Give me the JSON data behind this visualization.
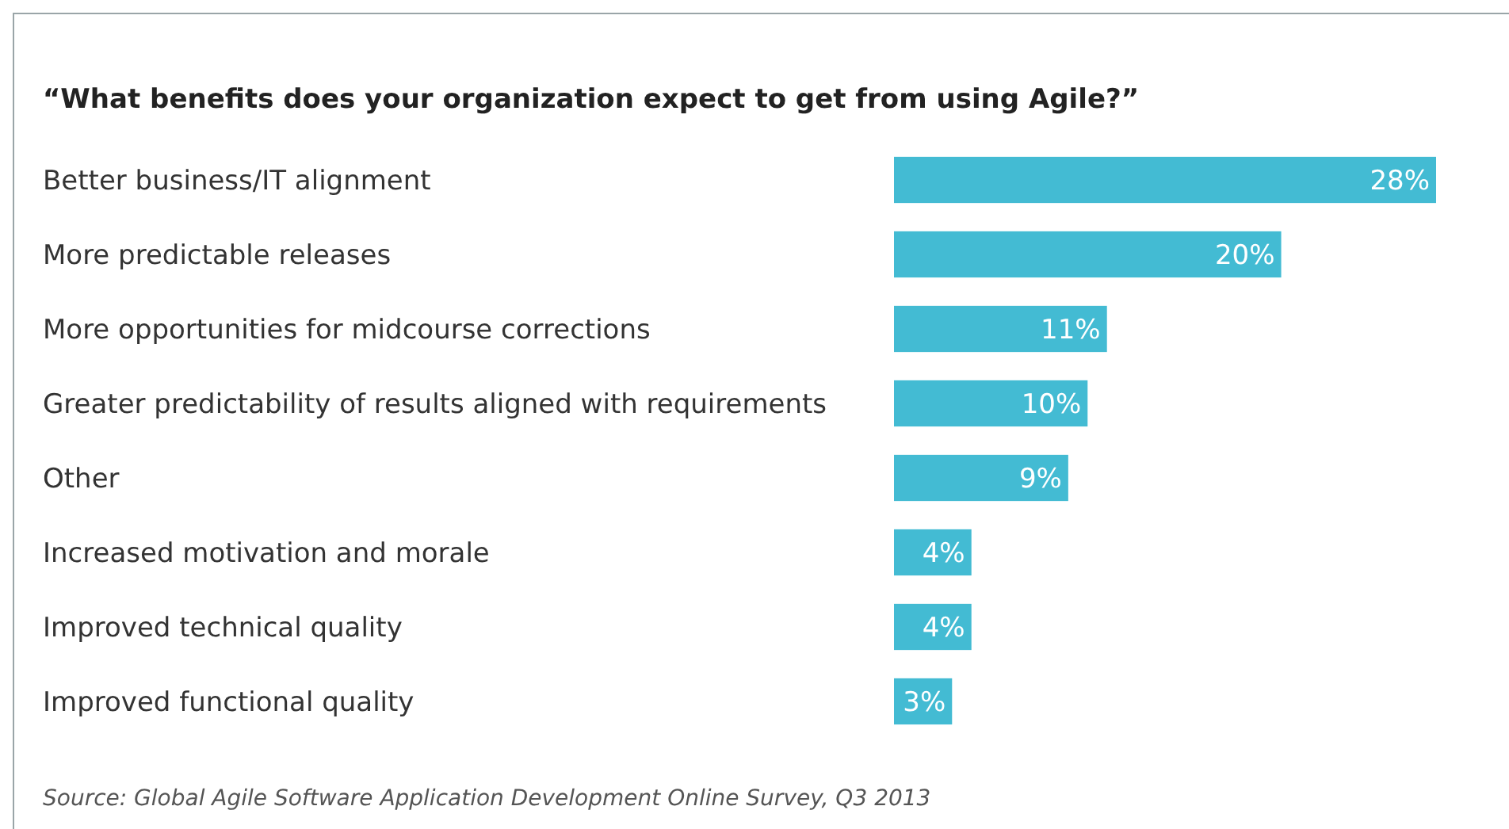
{
  "chart_data": {
    "type": "bar",
    "orientation": "horizontal",
    "title": "“What benefits does your organization expect to get from using Agile?”",
    "categories": [
      "Better business/IT alignment",
      "More predictable releases",
      "More opportunities for midcourse corrections",
      "Greater predictability of results aligned with requirements",
      "Other",
      "Increased motivation and morale",
      "Improved technical quality",
      "Improved functional quality"
    ],
    "values": [
      28,
      20,
      11,
      10,
      9,
      4,
      4,
      3
    ],
    "value_labels": [
      "28%",
      "20%",
      "11%",
      "10%",
      "9%",
      "4%",
      "4%",
      "3%"
    ],
    "color": "#43bbd3",
    "annotations": [
      "Source: Global Agile Software Application Development Online Survey, Q3 2013"
    ]
  }
}
